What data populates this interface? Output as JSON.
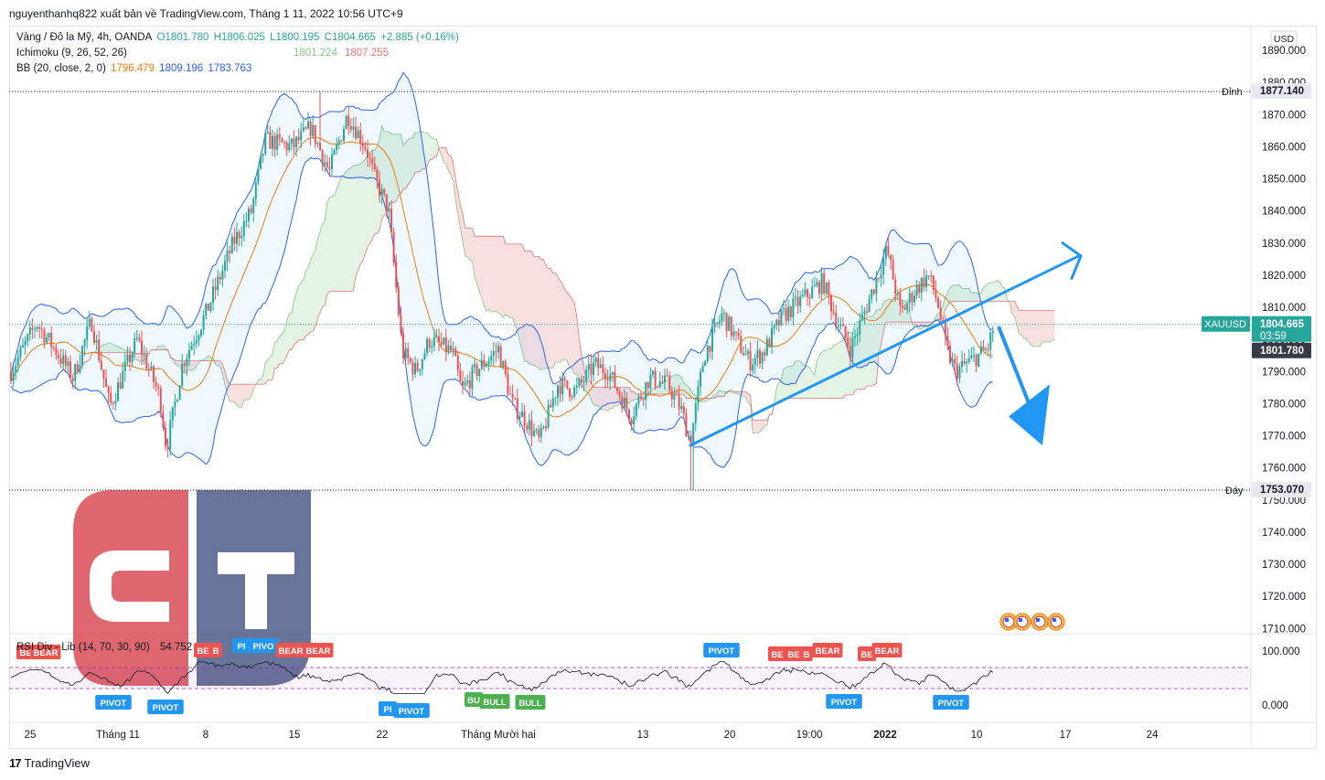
{
  "header": {
    "publisher_line": "nguyenthanhq822 xuất bản về TradingView.com, Tháng 1 11, 2022 10:56 UTC+9"
  },
  "legend": {
    "symbol_line": "Vàng / Đô la Mỹ, 4h, OANDA",
    "ohlc": {
      "o": "O1801.780",
      "h": "H1806.025",
      "l": "L1800.195",
      "c": "C1804.665",
      "chg": "+2.885 (+0.16%)"
    },
    "ichimoku_label": "Ichimoku (9, 26, 52, 26)",
    "ichimoku_values": [
      "1801.224",
      "1807.255"
    ],
    "bb_label": "BB (20, close, 2, 0)",
    "bb_values": [
      "1796.479",
      "1809.196",
      "1783.763"
    ]
  },
  "rsi_panel": {
    "label": "RSI Div - Lib (14, 70, 30, 90)",
    "value": "54.752",
    "axis_ticks": [
      "100.000",
      "0.000"
    ],
    "markers": [
      {
        "text": "BE",
        "kind": "bear"
      },
      {
        "text": "BEAR",
        "kind": "bear"
      },
      {
        "text": "BE",
        "kind": "bear"
      },
      {
        "text": "B",
        "kind": "bear"
      },
      {
        "text": "PI",
        "kind": "pivot"
      },
      {
        "text": "PIVO",
        "kind": "pivot"
      },
      {
        "text": "BEAR",
        "kind": "bear"
      },
      {
        "text": "BEAR",
        "kind": "bear"
      },
      {
        "text": "PIVOT",
        "kind": "pivot"
      },
      {
        "text": "BE",
        "kind": "bear"
      },
      {
        "text": "BE",
        "kind": "bear"
      },
      {
        "text": "B",
        "kind": "bear"
      },
      {
        "text": "BEAR",
        "kind": "bear"
      },
      {
        "text": "BE",
        "kind": "bear"
      },
      {
        "text": "BEAR",
        "kind": "bear"
      },
      {
        "text": "PIVOT",
        "kind": "pivot"
      },
      {
        "text": "PIVOT",
        "kind": "pivot"
      },
      {
        "text": "PI",
        "kind": "pivot"
      },
      {
        "text": "PIVOT",
        "kind": "pivot"
      },
      {
        "text": "BU",
        "kind": "bull"
      },
      {
        "text": "BULL",
        "kind": "bull"
      },
      {
        "text": "BULL",
        "kind": "bull"
      },
      {
        "text": "PIVOT",
        "kind": "pivot"
      },
      {
        "text": "PIVOT",
        "kind": "pivot"
      }
    ]
  },
  "price_axis": {
    "currency_button": "USD",
    "ticks": [
      "1890.000",
      "1880.000",
      "1870.000",
      "1860.000",
      "1850.000",
      "1840.000",
      "1830.000",
      "1820.000",
      "1810.000",
      "1800.000",
      "1790.000",
      "1780.000",
      "1770.000",
      "1760.000",
      "1750.000",
      "1740.000",
      "1730.000",
      "1720.000",
      "1710.000"
    ],
    "high_label": "Đỉnh",
    "high_value": "1877.140",
    "low_label": "Đáy",
    "low_value": "1753.070",
    "symbol_tag": "XAUUSD",
    "last_price": "1804.665",
    "countdown": "03:59",
    "open_price": "1801.780"
  },
  "time_axis": {
    "ticks": [
      "25",
      "Tháng 11",
      "8",
      "15",
      "22",
      "Tháng Mười hai",
      "13",
      "20",
      "19:00",
      "2022",
      "10",
      "17",
      "24"
    ]
  },
  "footer": {
    "brand": "TradingView"
  },
  "colors": {
    "up": "#26a69a",
    "down": "#ef5350",
    "bb_band": "#2962ff",
    "bb_basis": "#f57c00",
    "kumo_bull": "#81c784",
    "kumo_bear": "#e57373",
    "annotation": "#2196f3",
    "watermark_red": "#d32f3a",
    "watermark_navy": "#2f3f73"
  },
  "chart_data": {
    "type": "candlestick",
    "symbol": "XAUUSD",
    "timeframe": "4h",
    "ylim": [
      1707,
      1895
    ],
    "key_levels": {
      "high": 1877.14,
      "low": 1753.07,
      "last": 1804.665,
      "open": 1801.78
    },
    "approx_close_path": [
      {
        "t": "25",
        "close": 1790
      },
      {
        "t": "Tháng 11",
        "close": 1795
      },
      {
        "t": "8",
        "close": 1815
      },
      {
        "t": "15",
        "close": 1865
      },
      {
        "t": "22",
        "close": 1795
      },
      {
        "t": "Tháng Mười hai",
        "close": 1783
      },
      {
        "t": "13",
        "close": 1785
      },
      {
        "t": "20",
        "close": 1800
      },
      {
        "t": "19:00",
        "close": 1810
      },
      {
        "t": "2022",
        "close": 1825
      },
      {
        "t": "10",
        "close": 1795
      }
    ],
    "annotations": [
      "uptrend line with upward arrow",
      "downward arrow"
    ]
  }
}
